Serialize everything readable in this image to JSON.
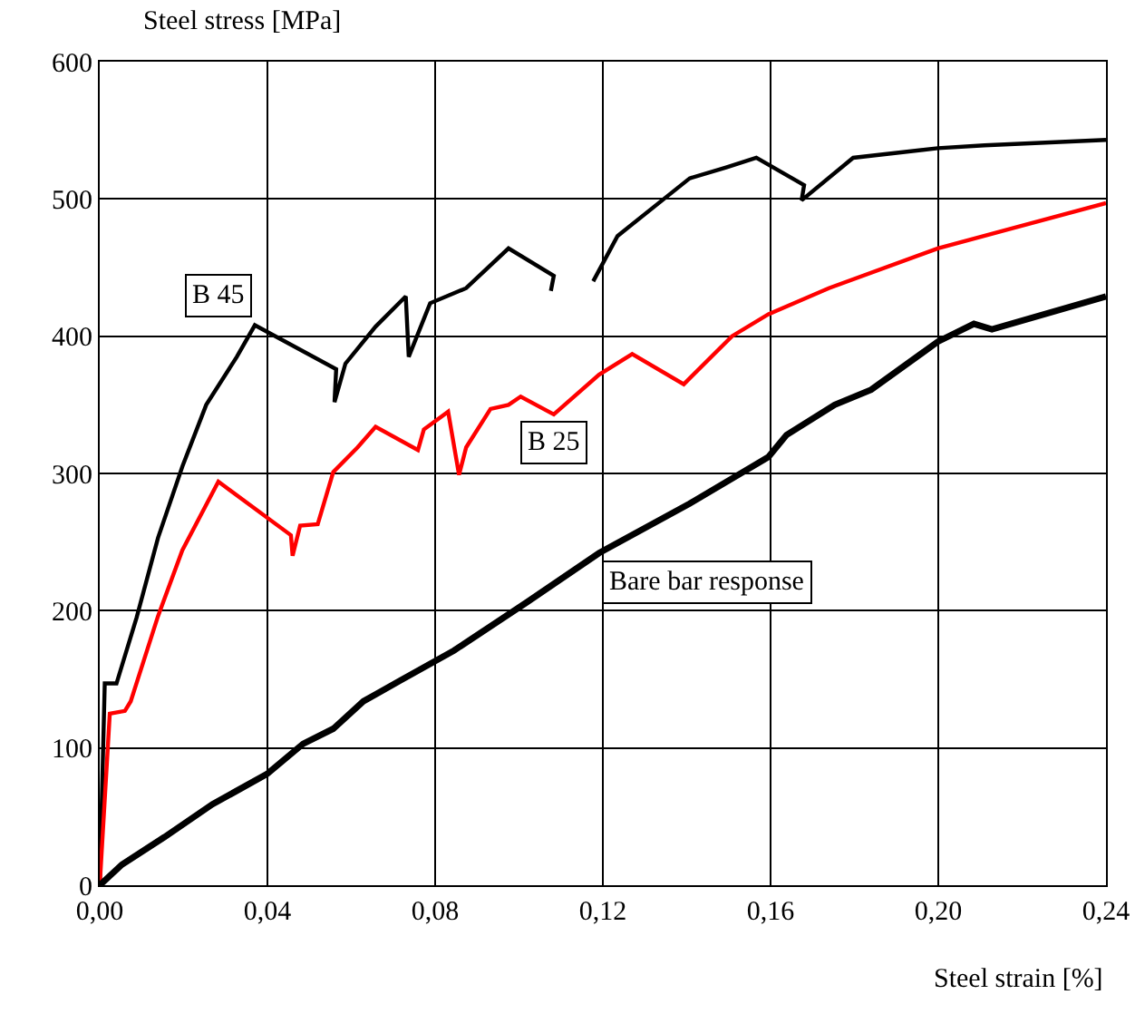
{
  "chart_data": {
    "type": "line",
    "xlabel": "Steel strain [%]",
    "ylabel": "Steel stress [MPa]",
    "xlim": [
      0,
      0.24
    ],
    "ylim": [
      0,
      600
    ],
    "xticks": [
      {
        "value": 0,
        "label": "0,00"
      },
      {
        "value": 0.04,
        "label": "0,04"
      },
      {
        "value": 0.08,
        "label": "0,08"
      },
      {
        "value": 0.12,
        "label": "0,12"
      },
      {
        "value": 0.16,
        "label": "0,16"
      },
      {
        "value": 0.2,
        "label": "0,20"
      },
      {
        "value": 0.24,
        "label": "0,24"
      }
    ],
    "yticks": [
      0,
      100,
      200,
      300,
      400,
      500,
      600
    ],
    "grid": true,
    "marker": "none",
    "line_style": "solid",
    "series": [
      {
        "color": "#000000",
        "x": [
          0,
          0.0012,
          0.004,
          0.0088,
          0.0139,
          0.0197,
          0.0254,
          0.0327,
          0.037,
          0.0564,
          0.056,
          0.0586,
          0.0658,
          0.073,
          0.0737,
          0.0788,
          0.0874,
          0.0975,
          0.1083,
          0.1076,
          null,
          0.1177,
          0.1235,
          0.1407,
          0.1494,
          0.1566,
          0.168,
          0.1674,
          0.1797,
          0.1999,
          0.211,
          0.24
        ],
        "values": [
          0,
          147,
          147,
          195,
          253,
          305,
          350,
          385,
          408,
          376,
          352,
          380,
          407,
          429,
          385,
          424,
          435,
          464,
          444,
          433,
          null,
          440,
          473,
          515,
          523,
          530,
          510,
          499,
          530,
          537,
          539,
          543
        ]
      },
      {
        "color": "#ff0000",
        "x": [
          0,
          0.0024,
          0.006,
          0.0074,
          0.0139,
          0.0197,
          0.0283,
          0.0456,
          0.046,
          0.0478,
          0.052,
          0.0557,
          0.0615,
          0.0658,
          0.0759,
          0.0773,
          0.0831,
          0.0857,
          0.0874,
          0.0932,
          0.0975,
          0.1004,
          0.1083,
          0.1191,
          0.127,
          0.1393,
          0.1508,
          0.1595,
          0.1739,
          0.1999,
          0.24
        ],
        "values": [
          0,
          125,
          127,
          134,
          196,
          244,
          294,
          255,
          240,
          262,
          263,
          301,
          319,
          334,
          317,
          332,
          345,
          299,
          319,
          347,
          350,
          356,
          343,
          372,
          387,
          365,
          400,
          416,
          435,
          464,
          497
        ]
      },
      {
        "color": "#000000",
        "x": [
          0,
          0.0053,
          0.0154,
          0.0269,
          0.0399,
          0.0485,
          0.0557,
          0.0629,
          0.0716,
          0.0845,
          0.1018,
          0.1191,
          0.1407,
          0.1595,
          0.1638,
          0.1753,
          0.184,
          0.1999,
          0.2085,
          0.2128,
          0.24
        ],
        "values": [
          0,
          15,
          35,
          59,
          81,
          103,
          114,
          134,
          149,
          171,
          206,
          242,
          278,
          312,
          328,
          350,
          361,
          396,
          409,
          405,
          429
        ]
      }
    ],
    "annotations": [
      {
        "text": "B 45",
        "x": 0.037,
        "y": 408
      },
      {
        "text": "B 25",
        "x": 0.1083,
        "y": 343
      },
      {
        "text": "Bare bar response",
        "x": 0.1191,
        "y": 242
      }
    ]
  }
}
